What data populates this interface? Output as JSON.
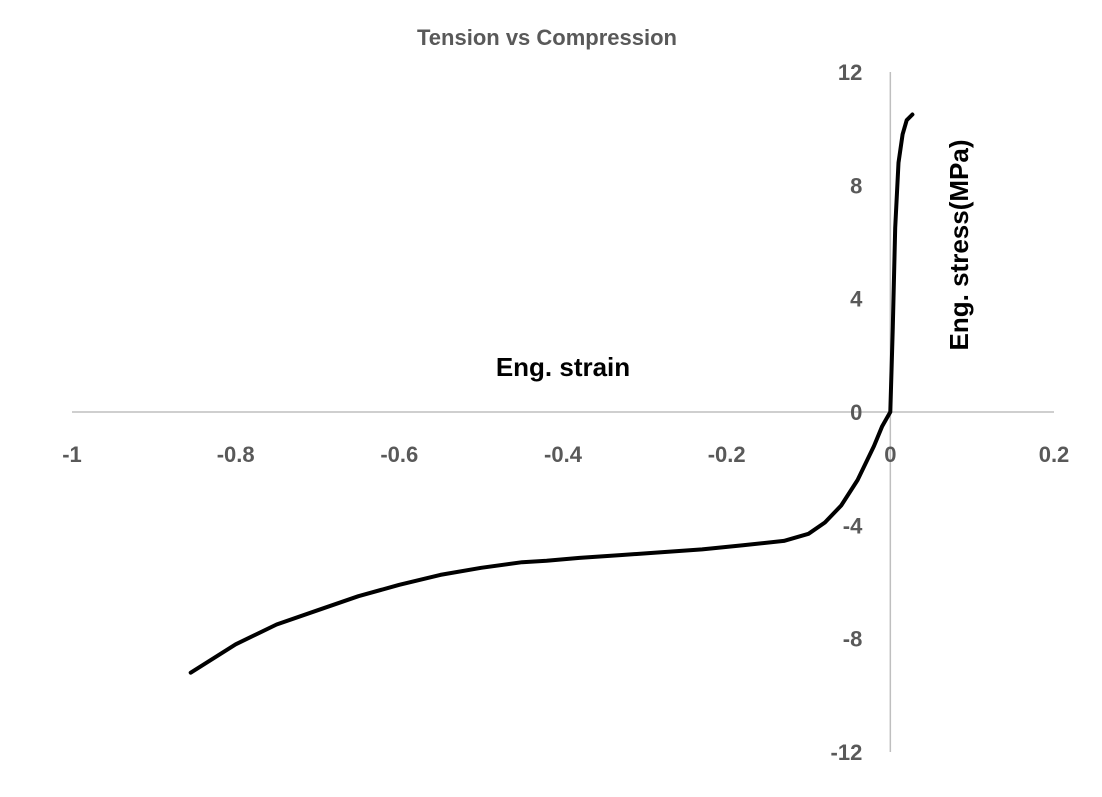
{
  "chart_data": {
    "type": "line",
    "title": "Tension vs Compression",
    "xlabel": "Eng. strain",
    "ylabel": "Eng. stress(MPa)",
    "xlim": [
      -1,
      0.2
    ],
    "ylim": [
      -12,
      12
    ],
    "x_ticks": [
      -1,
      -0.8,
      -0.6,
      -0.4,
      -0.2,
      0,
      0.2
    ],
    "x_tick_labels": [
      "-1",
      "-0.8",
      "-0.6",
      "-0.4",
      "-0.2",
      "0",
      "0.2"
    ],
    "y_ticks": [
      -12,
      -8,
      -4,
      0,
      4,
      8,
      12
    ],
    "y_tick_labels": [
      "-12",
      "-8",
      "-4",
      "0",
      "4",
      "8",
      "12"
    ],
    "grid": false,
    "legend": "none",
    "line_color": "#000000",
    "series": [
      {
        "x": [
          -0.855,
          -0.8,
          -0.75,
          -0.7,
          -0.65,
          -0.6,
          -0.55,
          -0.5,
          -0.45,
          -0.42,
          -0.38,
          -0.33,
          -0.28,
          -0.23,
          -0.18,
          -0.13,
          -0.1,
          -0.08,
          -0.06,
          -0.04,
          -0.02,
          -0.01,
          0,
          0.003,
          0.006,
          0.01,
          0.015,
          0.02,
          0.027
        ],
        "y": [
          -9.2,
          -8.2,
          -7.5,
          -7.0,
          -6.5,
          -6.1,
          -5.75,
          -5.5,
          -5.3,
          -5.25,
          -5.15,
          -5.05,
          -4.95,
          -4.85,
          -4.7,
          -4.55,
          -4.3,
          -3.9,
          -3.3,
          -2.4,
          -1.2,
          -0.5,
          0,
          3,
          6.5,
          8.8,
          9.8,
          10.3,
          10.5
        ]
      }
    ]
  }
}
